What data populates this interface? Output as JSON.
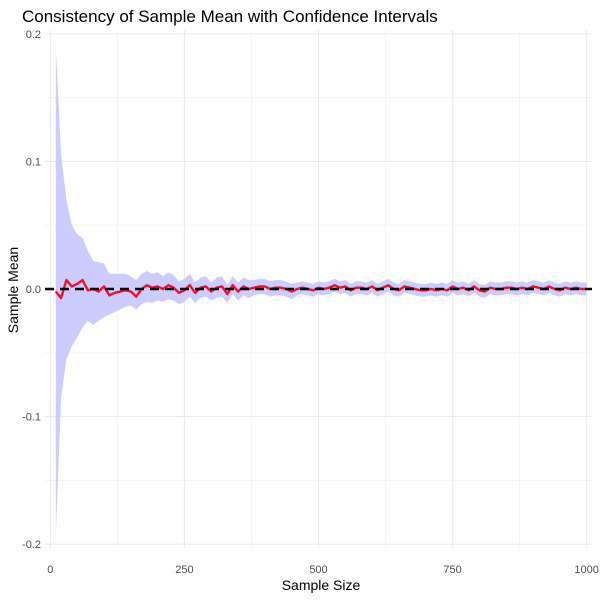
{
  "chart_data": {
    "type": "line",
    "title": "Consistency of Sample Mean with Confidence Intervals",
    "xlabel": "Sample Size",
    "ylabel": "Sample Mean",
    "xlim": [
      -10,
      1010
    ],
    "ylim": [
      -0.203,
      0.203
    ],
    "x_ticks": [
      0,
      250,
      500,
      750,
      1000
    ],
    "x_tick_labels": [
      "0",
      "250",
      "500",
      "750",
      "1000"
    ],
    "y_ticks": [
      -0.2,
      -0.1,
      0.0,
      0.1,
      0.2
    ],
    "y_tick_labels": [
      "-0.2",
      "-0.1",
      "0.0",
      "0.1",
      "0.2"
    ],
    "grid": true,
    "legend": "none",
    "reference_line": {
      "y": 0,
      "style": "dashed",
      "color": "#000000"
    },
    "series": [
      {
        "x": [
          10,
          20,
          30,
          40,
          50,
          60,
          70,
          80,
          90,
          100,
          110,
          120,
          130,
          140,
          150,
          160,
          170,
          180,
          190,
          200,
          210,
          220,
          230,
          240,
          250,
          260,
          270,
          280,
          290,
          300,
          310,
          320,
          330,
          340,
          350,
          360,
          370,
          380,
          390,
          400,
          410,
          420,
          430,
          440,
          450,
          460,
          470,
          480,
          490,
          500,
          510,
          520,
          530,
          540,
          550,
          560,
          570,
          580,
          590,
          600,
          610,
          620,
          630,
          640,
          650,
          660,
          670,
          680,
          690,
          700,
          710,
          720,
          730,
          740,
          750,
          760,
          770,
          780,
          790,
          800,
          810,
          820,
          830,
          840,
          850,
          860,
          870,
          880,
          890,
          900,
          910,
          920,
          930,
          940,
          950,
          960,
          970,
          980,
          990,
          1000
        ],
        "y": [
          -0.002,
          -0.007,
          0.007,
          0.002,
          0.004,
          0.007,
          -0.001,
          0.0,
          -0.002,
          0.002,
          -0.005,
          -0.003,
          -0.002,
          -0.001,
          -0.002,
          -0.006,
          0.0,
          0.003,
          0.001,
          0.002,
          0.0,
          0.003,
          0.001,
          -0.003,
          -0.001,
          0.003,
          -0.003,
          0.001,
          0.002,
          -0.002,
          0.001,
          0.002,
          -0.004,
          0.003,
          -0.002,
          0.002,
          0.0,
          0.001,
          0.002,
          0.002,
          0.0,
          0.001,
          0.001,
          0.0,
          -0.002,
          0.0,
          0.001,
          0.0,
          -0.001,
          0.001,
          0.0,
          0.001,
          0.003,
          0.001,
          0.002,
          -0.001,
          0.001,
          0.001,
          0.0,
          0.002,
          -0.001,
          0.001,
          0.003,
          0.0,
          -0.001,
          0.002,
          0.001,
          0.0,
          -0.001,
          -0.001,
          0.0,
          -0.001,
          0.0,
          -0.001,
          0.002,
          0.0,
          0.001,
          -0.001,
          0.002,
          -0.001,
          -0.002,
          0.001,
          0.0,
          0.0,
          0.001,
          0.001,
          0.0,
          0.001,
          0.0,
          0.002,
          0.001,
          0.0,
          0.002,
          0.0,
          -0.001,
          0.001,
          0.0,
          0.001,
          0.0,
          0.0
        ],
        "lower": [
          -0.195,
          -0.085,
          -0.055,
          -0.045,
          -0.038,
          -0.03,
          -0.025,
          -0.028,
          -0.025,
          -0.022,
          -0.02,
          -0.018,
          -0.016,
          -0.014,
          -0.013,
          -0.016,
          -0.012,
          -0.01,
          -0.011,
          -0.009,
          -0.01,
          -0.008,
          -0.009,
          -0.012,
          -0.01,
          -0.006,
          -0.011,
          -0.007,
          -0.006,
          -0.009,
          -0.007,
          -0.006,
          -0.011,
          -0.004,
          -0.009,
          -0.005,
          -0.007,
          -0.005,
          -0.004,
          -0.004,
          -0.006,
          -0.005,
          -0.005,
          -0.006,
          -0.008,
          -0.005,
          -0.004,
          -0.005,
          -0.006,
          -0.004,
          -0.005,
          -0.004,
          -0.002,
          -0.004,
          -0.003,
          -0.006,
          -0.004,
          -0.004,
          -0.005,
          -0.003,
          -0.006,
          -0.004,
          -0.002,
          -0.005,
          -0.006,
          -0.003,
          -0.004,
          -0.005,
          -0.006,
          -0.006,
          -0.005,
          -0.006,
          -0.005,
          -0.006,
          -0.003,
          -0.005,
          -0.004,
          -0.006,
          -0.003,
          -0.006,
          -0.007,
          -0.004,
          -0.005,
          -0.005,
          -0.004,
          -0.004,
          -0.005,
          -0.004,
          -0.005,
          -0.003,
          -0.004,
          -0.005,
          -0.003,
          -0.005,
          -0.006,
          -0.004,
          -0.005,
          -0.004,
          -0.005,
          -0.005
        ],
        "upper": [
          0.19,
          0.105,
          0.07,
          0.05,
          0.043,
          0.04,
          0.03,
          0.022,
          0.021,
          0.02,
          0.012,
          0.012,
          0.012,
          0.012,
          0.01,
          0.007,
          0.012,
          0.014,
          0.012,
          0.013,
          0.01,
          0.013,
          0.011,
          0.006,
          0.008,
          0.012,
          0.005,
          0.009,
          0.01,
          0.005,
          0.009,
          0.01,
          0.003,
          0.01,
          0.005,
          0.009,
          0.007,
          0.007,
          0.008,
          0.008,
          0.006,
          0.007,
          0.007,
          0.006,
          0.004,
          0.005,
          0.006,
          0.005,
          0.004,
          0.006,
          0.005,
          0.006,
          0.008,
          0.006,
          0.007,
          0.004,
          0.006,
          0.006,
          0.005,
          0.007,
          0.004,
          0.006,
          0.008,
          0.005,
          0.004,
          0.007,
          0.006,
          0.005,
          0.004,
          0.004,
          0.005,
          0.004,
          0.005,
          0.004,
          0.007,
          0.005,
          0.006,
          0.004,
          0.007,
          0.004,
          0.003,
          0.006,
          0.005,
          0.005,
          0.006,
          0.006,
          0.005,
          0.006,
          0.005,
          0.007,
          0.006,
          0.005,
          0.007,
          0.005,
          0.004,
          0.006,
          0.005,
          0.006,
          0.005,
          0.005
        ],
        "line_color": "#f0102a",
        "band_color": "#ccccff"
      }
    ]
  }
}
